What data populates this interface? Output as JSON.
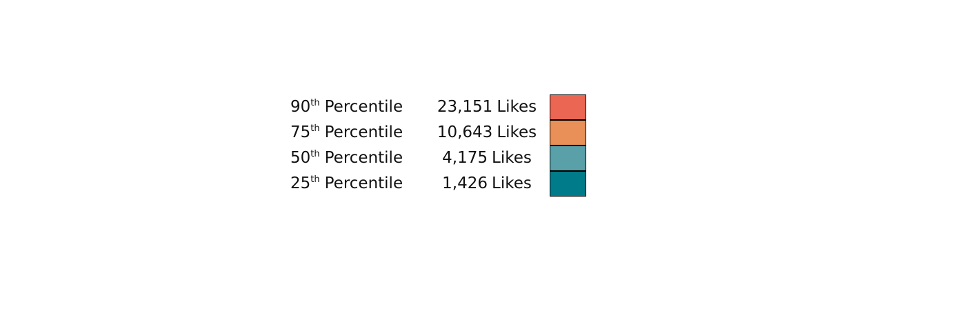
{
  "chart_data": {
    "type": "table",
    "rows": [
      {
        "rank": "90",
        "suffix": "th",
        "label": "Percentile",
        "likes": "23,151",
        "unit": "Likes",
        "color": "#EB6753"
      },
      {
        "rank": "75",
        "suffix": "th",
        "label": "Percentile",
        "likes": "10,643",
        "unit": "Likes",
        "color": "#E89057"
      },
      {
        "rank": "50",
        "suffix": "th",
        "label": "Percentile",
        "likes": "4,175",
        "unit": "Likes",
        "color": "#5AA0A9"
      },
      {
        "rank": "25",
        "suffix": "th",
        "label": "Percentile",
        "likes": "1,426",
        "unit": "Likes",
        "color": "#007B8A"
      }
    ]
  }
}
